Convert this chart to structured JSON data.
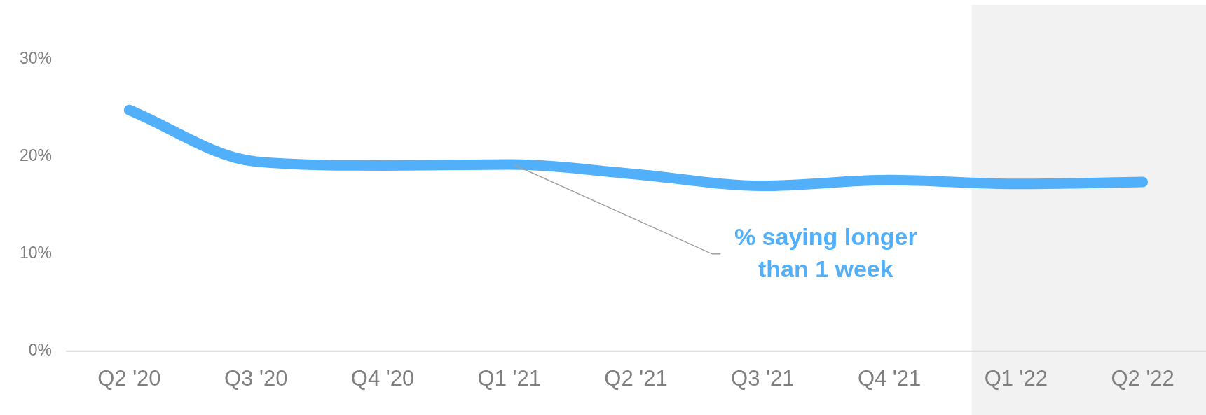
{
  "chart_data": {
    "type": "line",
    "categories": [
      "Q2 '20",
      "Q3 '20",
      "Q4 '20",
      "Q1 '21",
      "Q2 '21",
      "Q3 '21",
      "Q4 '21",
      "Q1 '22",
      "Q2 '22"
    ],
    "series": [
      {
        "name": "% saying longer than 1 week",
        "color": "#52b0fb",
        "values": [
          24.8,
          19.5,
          19.1,
          19.2,
          18.2,
          17.0,
          17.6,
          17.2,
          17.4
        ]
      }
    ],
    "ylim": [
      0,
      30
    ],
    "yticks": [
      {
        "value": 0,
        "label": "0%"
      },
      {
        "value": 10,
        "label": "10%"
      },
      {
        "value": 20,
        "label": "20%"
      },
      {
        "value": 30,
        "label": "30%"
      }
    ],
    "bands": [
      {
        "axis": "x",
        "from": "Q1 '22",
        "to": "Q2 '22",
        "color": "#f2f2f2"
      }
    ],
    "grid": false,
    "legend": false,
    "marker": "none"
  }
}
